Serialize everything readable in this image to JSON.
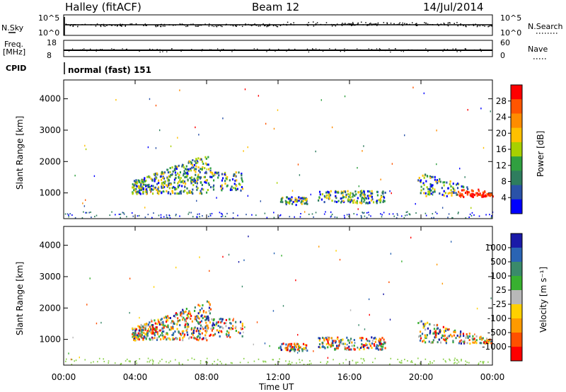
{
  "header": {
    "title": "Halley (fitACF)",
    "beam": "Beam 12",
    "date": "14/Jul/2014"
  },
  "sky_panel": {
    "left_label": "N.Sky",
    "left_ticks": [
      "10^5",
      "10^0"
    ],
    "right_label": "N.Search",
    "right_ticks": [
      "10^5",
      "10^0"
    ]
  },
  "freq_panel": {
    "left_label_line1": "Freq.",
    "left_label_line2": "[MHz]",
    "left_ticks": [
      "18",
      "8"
    ],
    "right_label": "Nave",
    "right_ticks": [
      "60",
      "0"
    ]
  },
  "cpid": {
    "label": "CPID",
    "mode": "normal (fast) 151"
  },
  "power_panel": {
    "ylabel": "Slant Range [km]",
    "yticks": [
      "4000",
      "3000",
      "2000",
      "1000"
    ],
    "colorbar_label": "Power [dB]",
    "colorbar_ticks": [
      "28",
      "24",
      "20",
      "16",
      "12",
      "8",
      "4"
    ],
    "colorbar_colors": [
      "#ff0000",
      "#ff5500",
      "#ff8c00",
      "#ffc000",
      "#a8d000",
      "#30a040",
      "#2e7d5e",
      "#2a52a8",
      "#0000ff"
    ]
  },
  "velocity_panel": {
    "ylabel": "Slant Range [km]",
    "yticks": [
      "4000",
      "3000",
      "2000",
      "1000"
    ],
    "colorbar_label": "Velocity [m s⁻¹]",
    "colorbar_ticks": [
      "1000",
      "500",
      "100",
      "25",
      "-25",
      "-100",
      "-500",
      "-1000"
    ],
    "colorbar_colors": [
      "#1a1aa8",
      "#2a64b4",
      "#3a8a6a",
      "#38b030",
      "#b8b8b8",
      "#ffd000",
      "#ff9a00",
      "#ff5000",
      "#ff0000"
    ]
  },
  "x_axis": {
    "label": "Time UT",
    "ticks": [
      "00:00",
      "04:00",
      "08:00",
      "12:00",
      "16:00",
      "20:00",
      "00:00"
    ]
  },
  "chart_data": {
    "type": "heatmap",
    "title": "Halley (fitACF)",
    "x_range_hours": [
      0,
      24
    ],
    "y_range_km": [
      180,
      4600
    ],
    "xlabel": "Time UT",
    "ylabel": "Slant Range [km]",
    "panels": [
      {
        "name": "Power [dB]",
        "range": [
          0,
          32
        ],
        "ticks": [
          4,
          8,
          12,
          16,
          20,
          24,
          28
        ]
      },
      {
        "name": "Velocity [m s-1]",
        "ticks": [
          -1000,
          -500,
          -100,
          -25,
          25,
          100,
          500,
          1000
        ]
      }
    ],
    "echo_regions": [
      {
        "t_start": 3.8,
        "t_end": 8.2,
        "r_low": 1000,
        "r_high": 2300
      },
      {
        "t_start": 8.2,
        "t_end": 10.0,
        "r_low": 1100,
        "r_high": 1700
      },
      {
        "t_start": 12.0,
        "t_end": 13.6,
        "r_low": 650,
        "r_high": 900
      },
      {
        "t_start": 14.2,
        "t_end": 18.0,
        "r_low": 700,
        "r_high": 1100
      },
      {
        "t_start": 19.8,
        "t_end": 24.0,
        "r_low": 900,
        "r_high": 1700
      }
    ],
    "freq_mhz_approx": 11,
    "cpid_value": 151
  }
}
